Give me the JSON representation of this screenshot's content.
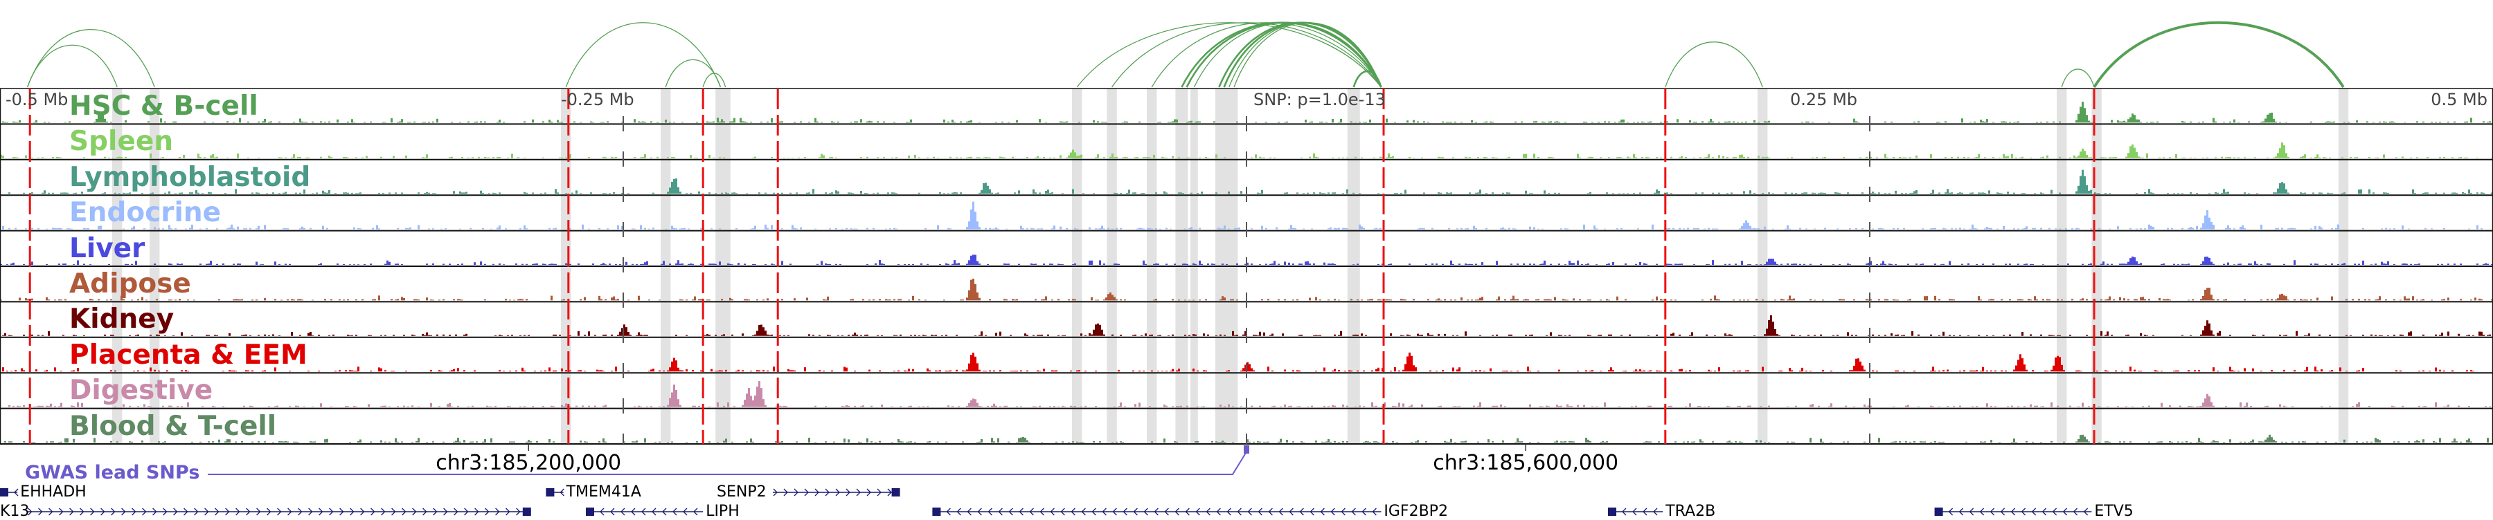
{
  "axis": {
    "labels": [
      {
        "text": "-0.5 Mb",
        "pos": -0.5
      },
      {
        "text": "-0.25 Mb",
        "pos": -0.25
      },
      {
        "text": "SNP: p=1.0e-13",
        "pos": 0
      },
      {
        "text": "0.25 Mb",
        "pos": 0.25
      },
      {
        "text": "0.5 Mb",
        "pos": 0.5
      }
    ],
    "coords": [
      {
        "text": "chr3:185,200,000",
        "pos": -0.288
      },
      {
        "text": "chr3:185,600,000",
        "pos": 0.112
      }
    ]
  },
  "tracks": [
    {
      "label": "HSC & B-cell",
      "color": "#55a055",
      "peaks": [
        [
          0.335,
          0.9
        ],
        [
          0.355,
          0.35
        ],
        [
          0.41,
          0.45
        ],
        [
          -0.46,
          0.4
        ]
      ]
    },
    {
      "label": "Spleen",
      "color": "#86cf62",
      "peaks": [
        [
          0.355,
          0.6
        ],
        [
          0.415,
          0.6
        ],
        [
          0.335,
          0.35
        ],
        [
          -0.07,
          0.3
        ]
      ]
    },
    {
      "label": "Lymphoblastoid",
      "color": "#4c9a88",
      "peaks": [
        [
          0.335,
          1.0
        ],
        [
          0.415,
          0.5
        ],
        [
          -0.23,
          0.7
        ],
        [
          -0.105,
          0.5
        ]
      ]
    },
    {
      "label": "Endocrine",
      "color": "#9bbcff",
      "peaks": [
        [
          -0.11,
          1.0
        ],
        [
          0.385,
          0.75
        ],
        [
          0.2,
          0.35
        ]
      ]
    },
    {
      "label": "Liver",
      "color": "#4a4ae0",
      "peaks": [
        [
          -0.11,
          0.5
        ],
        [
          0.385,
          0.4
        ],
        [
          0.355,
          0.35
        ],
        [
          0.21,
          0.3
        ]
      ]
    },
    {
      "label": "Adipose",
      "color": "#b05a3a",
      "peaks": [
        [
          -0.11,
          1.0
        ],
        [
          0.385,
          0.6
        ],
        [
          -0.055,
          0.35
        ],
        [
          0.415,
          0.3
        ]
      ]
    },
    {
      "label": "Kidney",
      "color": "#6b0000",
      "peaks": [
        [
          0.21,
          0.8
        ],
        [
          0.385,
          0.6
        ],
        [
          -0.195,
          0.55
        ],
        [
          -0.06,
          0.6
        ],
        [
          -0.25,
          0.45
        ]
      ]
    },
    {
      "label": "Placenta & EEM",
      "color": "#e00000",
      "peaks": [
        [
          -0.11,
          0.8
        ],
        [
          0.0,
          0.4
        ],
        [
          0.065,
          0.7
        ],
        [
          0.31,
          0.7
        ],
        [
          0.325,
          0.7
        ],
        [
          0.245,
          0.6
        ],
        [
          -0.23,
          0.5
        ]
      ]
    },
    {
      "label": "Digestive",
      "color": "#c98aaa",
      "peaks": [
        [
          -0.196,
          1.0
        ],
        [
          -0.23,
          0.9
        ],
        [
          -0.2,
          0.7
        ],
        [
          0.385,
          0.5
        ],
        [
          -0.11,
          0.4
        ]
      ]
    },
    {
      "label": "Blood & T-cell",
      "color": "#5f8a63",
      "peaks": [
        [
          0.335,
          0.35
        ],
        [
          0.41,
          0.3
        ],
        [
          -0.09,
          0.25
        ]
      ]
    }
  ],
  "red_lines": [
    -0.488,
    -0.272,
    -0.218,
    -0.188,
    0.055,
    0.168,
    0.34
  ],
  "highlights": [
    [
      -0.453,
      0.004
    ],
    [
      -0.438,
      0.004
    ],
    [
      -0.273,
      0.004
    ],
    [
      -0.233,
      0.004
    ],
    [
      -0.211,
      0.004
    ],
    [
      -0.209,
      0.004
    ],
    [
      -0.068,
      0.004
    ],
    [
      -0.054,
      0.004
    ],
    [
      -0.038,
      0.004
    ],
    [
      -0.026,
      0.005
    ],
    [
      -0.021,
      0.003
    ],
    [
      -0.011,
      0.003
    ],
    [
      -0.009,
      0.003
    ],
    [
      -0.007,
      0.003
    ],
    [
      -0.005,
      0.003
    ],
    [
      0.043,
      0.005
    ],
    [
      0.207,
      0.004
    ],
    [
      0.327,
      0.004
    ],
    [
      0.341,
      0.004
    ],
    [
      0.44,
      0.004
    ]
  ],
  "arcs": [
    [
      -0.489,
      -0.453,
      1
    ],
    [
      -0.489,
      -0.438,
      1
    ],
    [
      -0.273,
      -0.211,
      1
    ],
    [
      -0.233,
      -0.211,
      1
    ],
    [
      -0.218,
      -0.209,
      1
    ],
    [
      -0.068,
      0.054,
      1
    ],
    [
      -0.054,
      0.054,
      1
    ],
    [
      -0.038,
      0.054,
      1
    ],
    [
      -0.026,
      0.054,
      2
    ],
    [
      -0.024,
      0.054,
      2
    ],
    [
      -0.021,
      0.054,
      1
    ],
    [
      -0.011,
      0.054,
      2
    ],
    [
      -0.009,
      0.054,
      2
    ],
    [
      -0.007,
      0.054,
      1
    ],
    [
      -0.005,
      0.054,
      1
    ],
    [
      0.043,
      0.054,
      2
    ],
    [
      0.168,
      0.207,
      1
    ],
    [
      0.327,
      0.34,
      1
    ],
    [
      0.34,
      0.44,
      3
    ]
  ],
  "gwas": {
    "label": "GWAS lead SNPs",
    "snp_pos": 0
  },
  "genes": [
    {
      "name": "EHHADH",
      "row": 0,
      "start": -0.5,
      "end": -0.493,
      "strand": "-",
      "label_side": "right"
    },
    {
      "name": "TMEM41A",
      "row": 0,
      "start": -0.281,
      "end": -0.274,
      "strand": "-",
      "label_side": "right"
    },
    {
      "name": "SENP2",
      "row": 0,
      "start": -0.19,
      "end": -0.139,
      "strand": "+",
      "label_side": "left"
    },
    {
      "name": "K13",
      "row": 1,
      "start": -0.489,
      "end": -0.287,
      "strand": "+",
      "label_side": "left"
    },
    {
      "name": "LIPH",
      "row": 1,
      "start": -0.265,
      "end": -0.218,
      "strand": "-",
      "label_side": "right"
    },
    {
      "name": "IGF2BP2",
      "row": 1,
      "start": -0.126,
      "end": 0.054,
      "strand": "-",
      "label_side": "right"
    },
    {
      "name": "TRA2B",
      "row": 1,
      "start": 0.145,
      "end": 0.167,
      "strand": "-",
      "label_side": "right"
    },
    {
      "name": "ETV5",
      "row": 1,
      "start": 0.276,
      "end": 0.339,
      "strand": "-",
      "label_side": "right"
    }
  ]
}
